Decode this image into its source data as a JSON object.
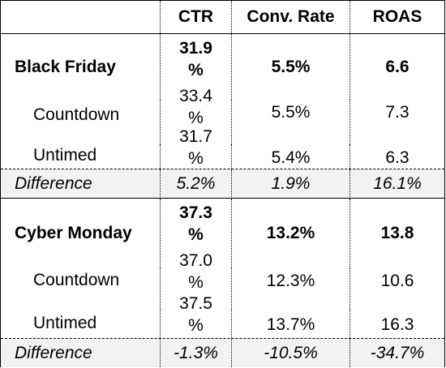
{
  "headers": [
    "",
    "CTR",
    "Conv. Rate",
    "ROAS"
  ],
  "sections": [
    {
      "title": "Black Friday",
      "summary": {
        "ctr_top": "31.9",
        "ctr_bottom": "%",
        "conv": "5.5%",
        "roas": "6.6"
      },
      "rows": [
        {
          "label": "Countdown",
          "ctr_top": "33.4",
          "ctr_bottom": "%",
          "conv": "5.5%",
          "roas": "7.3"
        },
        {
          "label": "Untimed",
          "ctr_top": "31.7",
          "ctr_bottom": "%",
          "conv": "5.4%",
          "roas": "6.3"
        }
      ],
      "difference": {
        "label": "Difference",
        "ctr": "5.2%",
        "conv": "1.9%",
        "roas": "16.1%"
      }
    },
    {
      "title": "Cyber Monday",
      "summary": {
        "ctr_top": "37.3",
        "ctr_bottom": "%",
        "conv": "13.2%",
        "roas": "13.8"
      },
      "rows": [
        {
          "label": "Countdown",
          "ctr_top": "37.0",
          "ctr_bottom": "%",
          "conv": "12.3%",
          "roas": "10.6"
        },
        {
          "label": "Untimed",
          "ctr_top": "37.5",
          "ctr_bottom": "%",
          "conv": "13.7%",
          "roas": "16.3"
        }
      ],
      "difference": {
        "label": "Difference",
        "ctr": "-1.3%",
        "conv": "-10.5%",
        "roas": "-34.7%"
      }
    }
  ]
}
